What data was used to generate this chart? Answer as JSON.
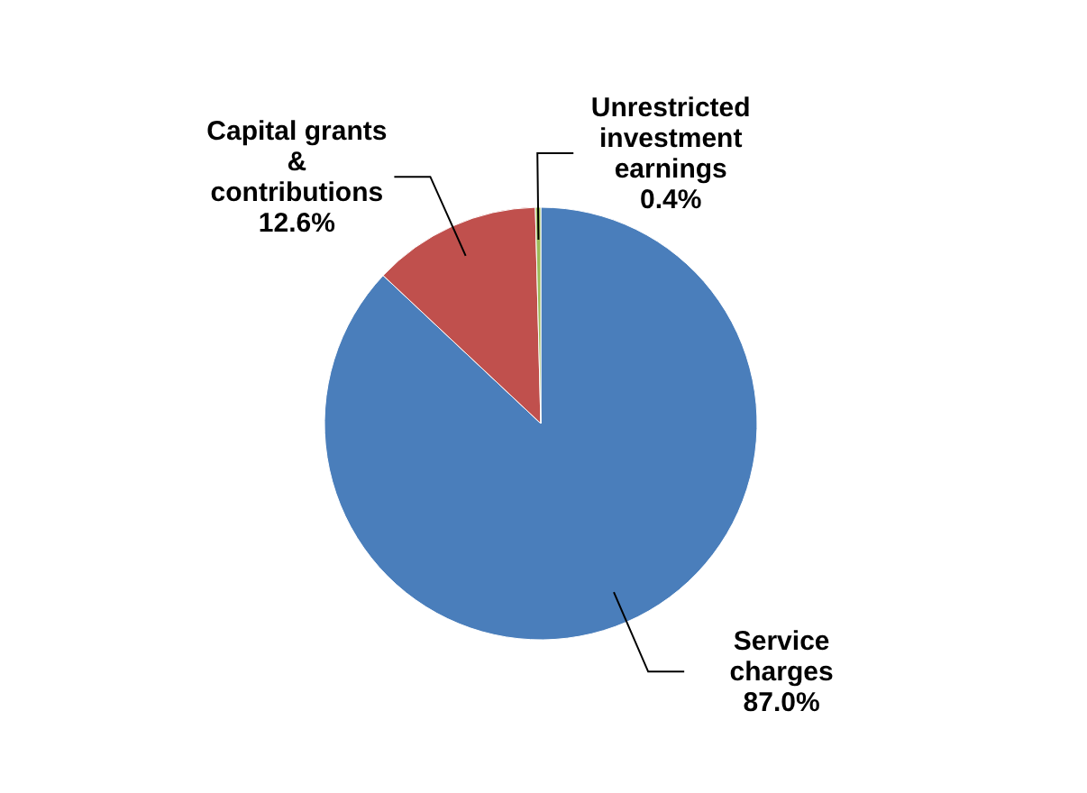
{
  "chart_data": {
    "type": "pie",
    "categories": [
      "Service charges",
      "Capital grants & contributions",
      "Unrestricted investment earnings"
    ],
    "values": [
      87.0,
      12.6,
      0.4
    ],
    "value_labels": [
      "87.0%",
      "12.6%",
      "0.4%"
    ],
    "colors": [
      "#4a7ebb",
      "#c0504d",
      "#9bbb59"
    ],
    "legend": false
  }
}
